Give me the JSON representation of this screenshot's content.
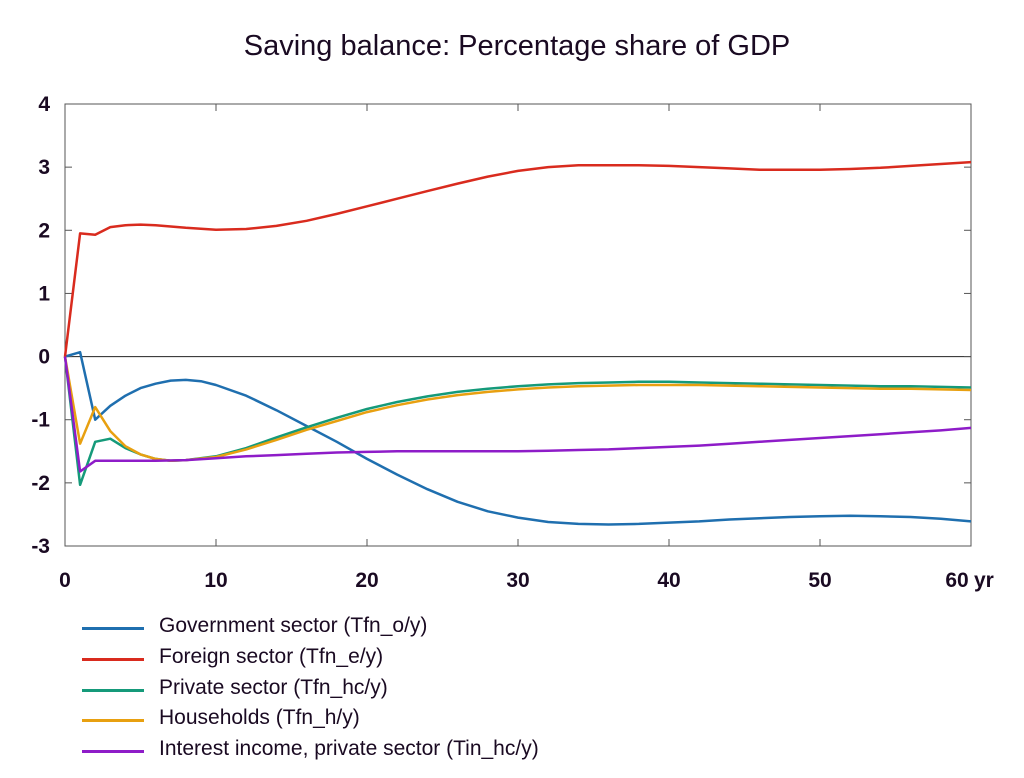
{
  "title": "Saving balance: Percentage share of GDP",
  "chart_data": {
    "type": "line",
    "title": "Saving balance: Percentage share of GDP",
    "xlabel": "",
    "ylabel": "",
    "x_unit_label": "yr",
    "xlim": [
      0,
      60
    ],
    "ylim": [
      -3,
      4
    ],
    "x_ticks": [
      0,
      10,
      20,
      30,
      40,
      50,
      60
    ],
    "y_ticks": [
      4,
      3,
      2,
      1,
      0,
      -1,
      -2,
      -3
    ],
    "grid": false,
    "zero_line": true,
    "legend_position": "bottom",
    "series": [
      {
        "name": "Government sector (Tfn_o/y)",
        "color": "#1f6faf",
        "points": [
          [
            0,
            0
          ],
          [
            1,
            0.07
          ],
          [
            2,
            -1.0
          ],
          [
            3,
            -0.78
          ],
          [
            4,
            -0.62
          ],
          [
            5,
            -0.5
          ],
          [
            6,
            -0.43
          ],
          [
            7,
            -0.38
          ],
          [
            8,
            -0.37
          ],
          [
            9,
            -0.39
          ],
          [
            10,
            -0.45
          ],
          [
            12,
            -0.62
          ],
          [
            14,
            -0.85
          ],
          [
            16,
            -1.1
          ],
          [
            18,
            -1.35
          ],
          [
            20,
            -1.62
          ],
          [
            22,
            -1.87
          ],
          [
            24,
            -2.1
          ],
          [
            26,
            -2.3
          ],
          [
            28,
            -2.45
          ],
          [
            30,
            -2.55
          ],
          [
            32,
            -2.62
          ],
          [
            34,
            -2.65
          ],
          [
            36,
            -2.66
          ],
          [
            38,
            -2.65
          ],
          [
            40,
            -2.63
          ],
          [
            42,
            -2.61
          ],
          [
            44,
            -2.58
          ],
          [
            46,
            -2.56
          ],
          [
            48,
            -2.54
          ],
          [
            50,
            -2.53
          ],
          [
            52,
            -2.52
          ],
          [
            54,
            -2.53
          ],
          [
            56,
            -2.54
          ],
          [
            58,
            -2.57
          ],
          [
            60,
            -2.61
          ]
        ]
      },
      {
        "name": "Foreign sector (Tfn_e/y)",
        "color": "#d92b1e",
        "points": [
          [
            0,
            0
          ],
          [
            1,
            1.95
          ],
          [
            2,
            1.93
          ],
          [
            3,
            2.05
          ],
          [
            4,
            2.08
          ],
          [
            5,
            2.09
          ],
          [
            6,
            2.08
          ],
          [
            7,
            2.06
          ],
          [
            8,
            2.04
          ],
          [
            10,
            2.01
          ],
          [
            12,
            2.02
          ],
          [
            14,
            2.07
          ],
          [
            16,
            2.15
          ],
          [
            18,
            2.26
          ],
          [
            20,
            2.38
          ],
          [
            22,
            2.5
          ],
          [
            24,
            2.62
          ],
          [
            26,
            2.74
          ],
          [
            28,
            2.85
          ],
          [
            30,
            2.94
          ],
          [
            32,
            3.0
          ],
          [
            34,
            3.03
          ],
          [
            36,
            3.03
          ],
          [
            38,
            3.03
          ],
          [
            40,
            3.02
          ],
          [
            42,
            3.0
          ],
          [
            44,
            2.98
          ],
          [
            46,
            2.96
          ],
          [
            48,
            2.96
          ],
          [
            50,
            2.96
          ],
          [
            52,
            2.97
          ],
          [
            54,
            2.99
          ],
          [
            56,
            3.02
          ],
          [
            58,
            3.05
          ],
          [
            60,
            3.08
          ]
        ]
      },
      {
        "name": "Private sector (Tfn_hc/y)",
        "color": "#159a7a",
        "points": [
          [
            0,
            0
          ],
          [
            1,
            -2.03
          ],
          [
            2,
            -1.35
          ],
          [
            3,
            -1.3
          ],
          [
            4,
            -1.45
          ],
          [
            5,
            -1.55
          ],
          [
            6,
            -1.62
          ],
          [
            7,
            -1.65
          ],
          [
            8,
            -1.64
          ],
          [
            10,
            -1.58
          ],
          [
            12,
            -1.45
          ],
          [
            14,
            -1.28
          ],
          [
            16,
            -1.12
          ],
          [
            18,
            -0.97
          ],
          [
            20,
            -0.83
          ],
          [
            22,
            -0.72
          ],
          [
            24,
            -0.63
          ],
          [
            26,
            -0.56
          ],
          [
            28,
            -0.51
          ],
          [
            30,
            -0.47
          ],
          [
            32,
            -0.44
          ],
          [
            34,
            -0.42
          ],
          [
            36,
            -0.41
          ],
          [
            38,
            -0.4
          ],
          [
            40,
            -0.4
          ],
          [
            42,
            -0.41
          ],
          [
            44,
            -0.42
          ],
          [
            46,
            -0.43
          ],
          [
            48,
            -0.44
          ],
          [
            50,
            -0.45
          ],
          [
            52,
            -0.46
          ],
          [
            54,
            -0.47
          ],
          [
            56,
            -0.47
          ],
          [
            58,
            -0.48
          ],
          [
            60,
            -0.49
          ]
        ]
      },
      {
        "name": "Households (Tfn_h/y)",
        "color": "#e8a010",
        "points": [
          [
            0,
            0
          ],
          [
            1,
            -1.38
          ],
          [
            2,
            -0.8
          ],
          [
            3,
            -1.18
          ],
          [
            4,
            -1.42
          ],
          [
            5,
            -1.55
          ],
          [
            6,
            -1.62
          ],
          [
            7,
            -1.65
          ],
          [
            8,
            -1.64
          ],
          [
            10,
            -1.59
          ],
          [
            12,
            -1.47
          ],
          [
            14,
            -1.32
          ],
          [
            16,
            -1.16
          ],
          [
            18,
            -1.02
          ],
          [
            20,
            -0.88
          ],
          [
            22,
            -0.77
          ],
          [
            24,
            -0.68
          ],
          [
            26,
            -0.61
          ],
          [
            28,
            -0.56
          ],
          [
            30,
            -0.52
          ],
          [
            32,
            -0.49
          ],
          [
            34,
            -0.47
          ],
          [
            36,
            -0.46
          ],
          [
            38,
            -0.45
          ],
          [
            40,
            -0.45
          ],
          [
            42,
            -0.45
          ],
          [
            44,
            -0.46
          ],
          [
            46,
            -0.47
          ],
          [
            48,
            -0.48
          ],
          [
            50,
            -0.49
          ],
          [
            52,
            -0.5
          ],
          [
            54,
            -0.51
          ],
          [
            56,
            -0.51
          ],
          [
            58,
            -0.52
          ],
          [
            60,
            -0.53
          ]
        ]
      },
      {
        "name": "Interest income, private sector (Tin_hc/y)",
        "color": "#8e1cc8",
        "points": [
          [
            0,
            0
          ],
          [
            1,
            -1.82
          ],
          [
            2,
            -1.65
          ],
          [
            3,
            -1.65
          ],
          [
            4,
            -1.65
          ],
          [
            5,
            -1.65
          ],
          [
            6,
            -1.65
          ],
          [
            8,
            -1.64
          ],
          [
            10,
            -1.61
          ],
          [
            12,
            -1.58
          ],
          [
            14,
            -1.56
          ],
          [
            16,
            -1.54
          ],
          [
            18,
            -1.52
          ],
          [
            20,
            -1.51
          ],
          [
            22,
            -1.5
          ],
          [
            24,
            -1.5
          ],
          [
            26,
            -1.5
          ],
          [
            28,
            -1.5
          ],
          [
            30,
            -1.5
          ],
          [
            32,
            -1.49
          ],
          [
            34,
            -1.48
          ],
          [
            36,
            -1.47
          ],
          [
            38,
            -1.45
          ],
          [
            40,
            -1.43
          ],
          [
            42,
            -1.41
          ],
          [
            44,
            -1.38
          ],
          [
            46,
            -1.35
          ],
          [
            48,
            -1.32
          ],
          [
            50,
            -1.29
          ],
          [
            52,
            -1.26
          ],
          [
            54,
            -1.23
          ],
          [
            56,
            -1.2
          ],
          [
            58,
            -1.17
          ],
          [
            60,
            -1.13
          ]
        ]
      }
    ]
  }
}
